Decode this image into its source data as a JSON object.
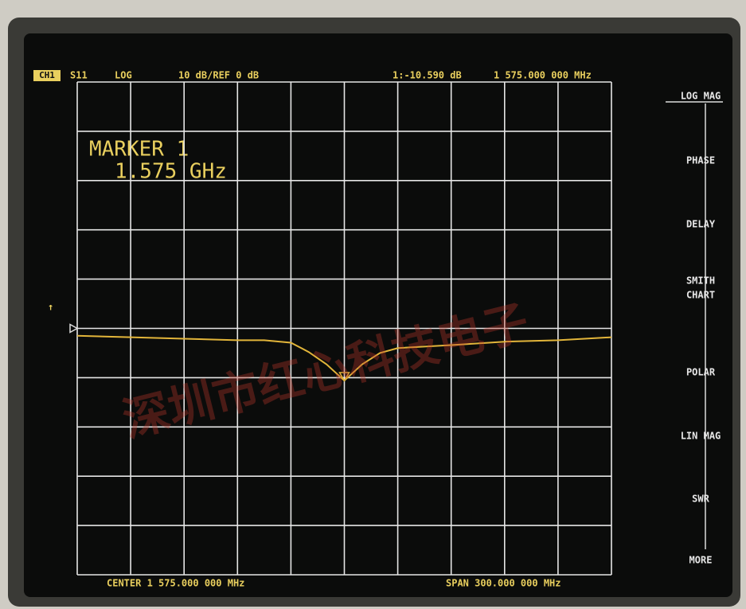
{
  "header": {
    "channel": "CH1",
    "parameter": "S11",
    "format": "LOG",
    "scale": "10 dB/REF 0 dB"
  },
  "annotation": [
    "MARKER 1",
    "1.575 GHz"
  ],
  "footer": {
    "center": "CENTER 1 575.000 000 MHz",
    "span": "SPAN 300.000 000 MHz"
  },
  "softkeys": [
    "LOG MAG",
    "PHASE",
    "DELAY",
    [
      "SMITH",
      "CHART"
    ],
    "POLAR",
    "LIN MAG",
    "SWR",
    "MORE"
  ],
  "watermark": "深圳市红心科技电子",
  "chart_data": {
    "type": "line",
    "x": [
      1425,
      1455,
      1485,
      1515,
      1530,
      1545,
      1555,
      1565,
      1575,
      1585,
      1595,
      1605,
      1635,
      1665,
      1695,
      1725
    ],
    "values": [
      -1.5,
      -1.8,
      -2.1,
      -2.4,
      -2.4,
      -2.9,
      -4.8,
      -7.3,
      -10.59,
      -7.3,
      -5,
      -4,
      -3.4,
      -2.7,
      -2.4,
      -1.8
    ],
    "color": "#e2b53a",
    "xlim": [
      1425,
      1725
    ],
    "xticks": [
      1425,
      1455,
      1485,
      1515,
      1545,
      1575,
      1605,
      1635,
      1665,
      1695,
      1725
    ],
    "ylim": [
      -50,
      50
    ],
    "yticks": [
      -50,
      -40,
      -30,
      -20,
      -10,
      0,
      10,
      20,
      30,
      40,
      50
    ],
    "grid": true,
    "reference_level": 0,
    "marker": {
      "x": 1575,
      "value": -10.59,
      "value_label": "1:-10.590 dB",
      "x_label": "1 575.000 000 MHz"
    }
  }
}
